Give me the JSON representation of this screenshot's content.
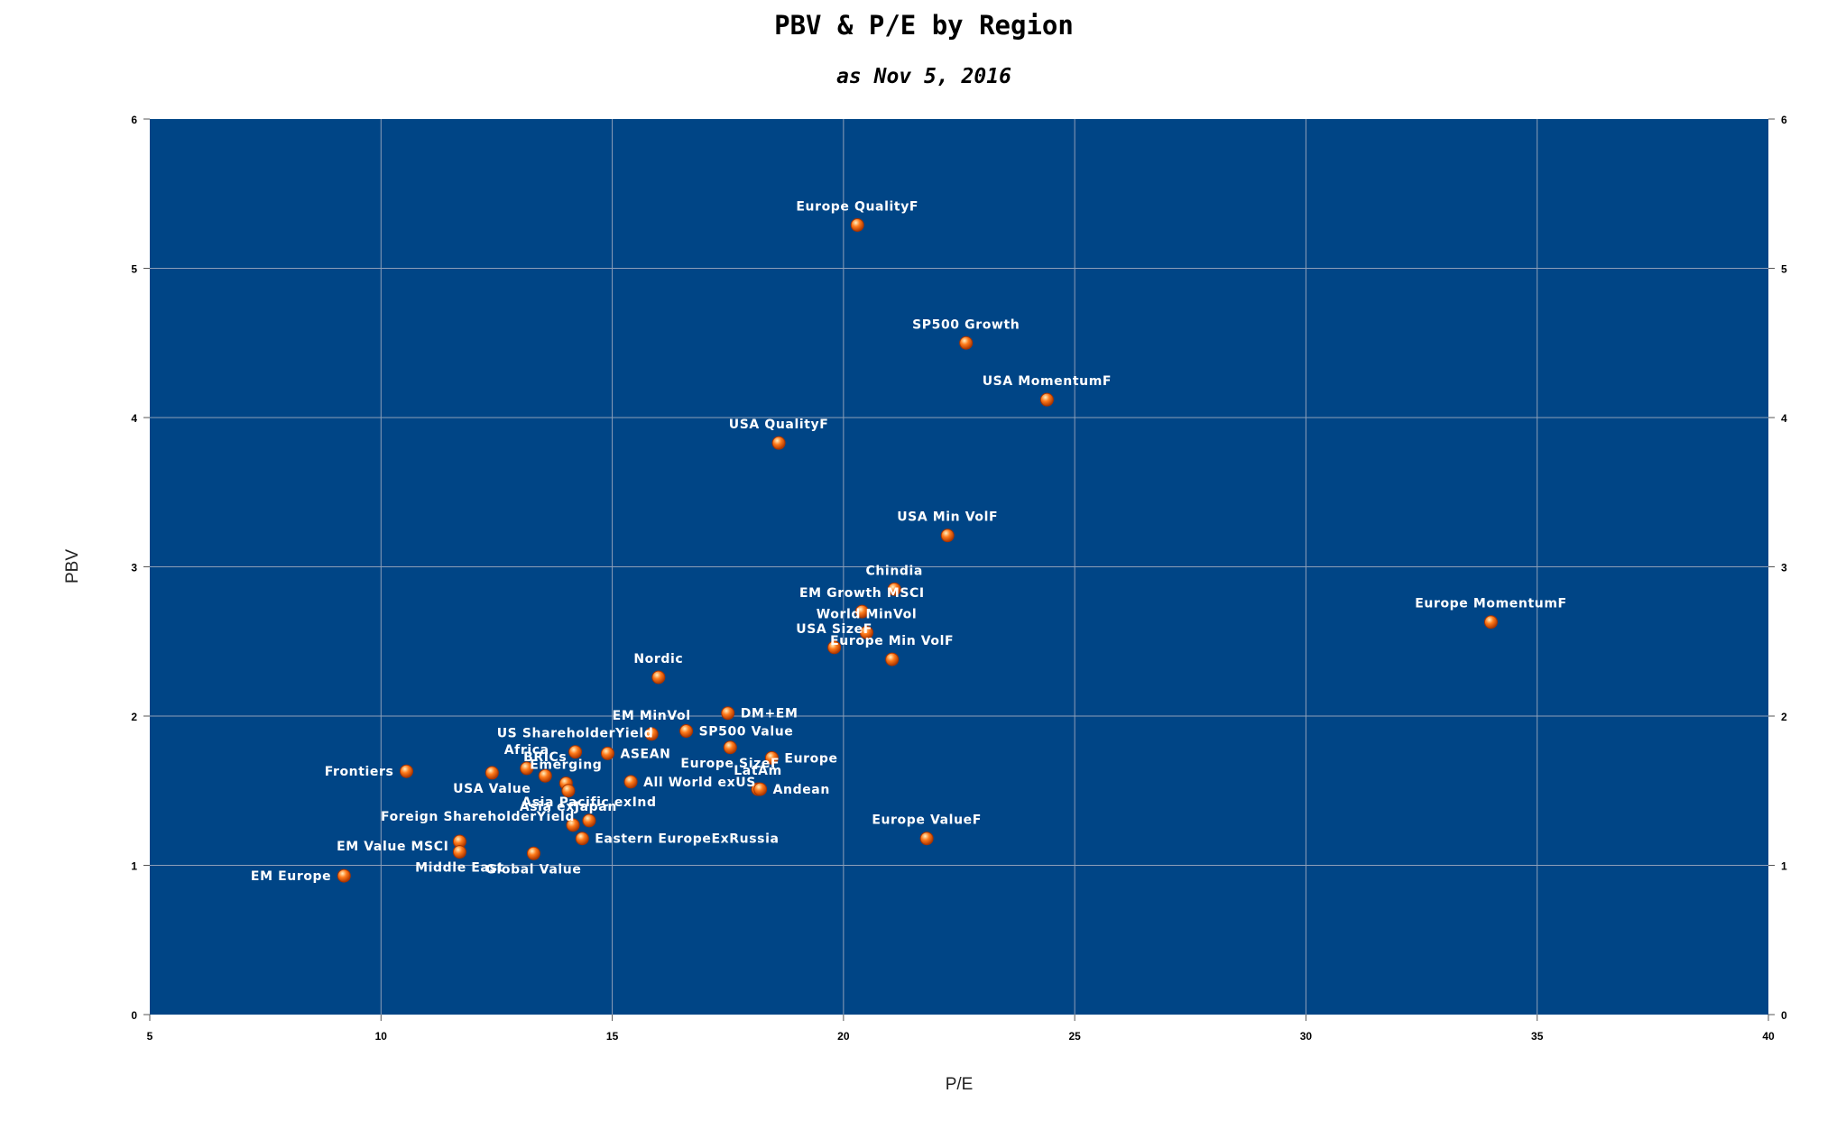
{
  "chart_data": {
    "type": "scatter",
    "title": "PBV & P/E by Region",
    "subtitle": "as Nov 5, 2016",
    "xlabel": "P/E",
    "ylabel": "PBV",
    "xlim": [
      5,
      40
    ],
    "ylim": [
      0,
      6
    ],
    "x_ticks": [
      "5",
      "10",
      "15",
      "20",
      "25",
      "30",
      "35",
      "40"
    ],
    "y_ticks": [
      "0",
      "1",
      "2",
      "3",
      "4",
      "5",
      "6"
    ],
    "y_ticks_right": [
      "0",
      "1",
      "2",
      "3",
      "4",
      "5",
      "6"
    ],
    "grid": true,
    "colors": {
      "plot_background": "#004586",
      "marker": "#ff7a1a",
      "marker_edge": "#a83400",
      "label": "#ffffff",
      "grid": "#8e9fb8"
    },
    "points": [
      {
        "label": "Europe QualityF",
        "x": 20.3,
        "y": 5.29,
        "anchor": "middle",
        "pos": "above"
      },
      {
        "label": "SP500 Growth",
        "x": 22.65,
        "y": 4.5,
        "anchor": "middle",
        "pos": "above"
      },
      {
        "label": "USA MomentumF",
        "x": 24.4,
        "y": 4.12,
        "anchor": "middle",
        "pos": "above"
      },
      {
        "label": "USA QualityF",
        "x": 18.6,
        "y": 3.83,
        "anchor": "middle",
        "pos": "above"
      },
      {
        "label": "USA Min VolF",
        "x": 22.25,
        "y": 3.21,
        "anchor": "middle",
        "pos": "above"
      },
      {
        "label": "Chindia",
        "x": 21.1,
        "y": 2.85,
        "anchor": "middle",
        "pos": "above"
      },
      {
        "label": "EM Growth MSCI",
        "x": 20.4,
        "y": 2.7,
        "anchor": "middle",
        "pos": "above"
      },
      {
        "label": "World MinVol",
        "x": 20.5,
        "y": 2.56,
        "anchor": "middle",
        "pos": "above"
      },
      {
        "label": "USA SizeF",
        "x": 19.8,
        "y": 2.46,
        "anchor": "middle",
        "pos": "above"
      },
      {
        "label": "Europe Min VolF",
        "x": 21.05,
        "y": 2.38,
        "anchor": "middle",
        "pos": "above"
      },
      {
        "label": "Europe MomentumF",
        "x": 34.0,
        "y": 2.63,
        "anchor": "middle",
        "pos": "above"
      },
      {
        "label": "Nordic",
        "x": 16.0,
        "y": 2.26,
        "anchor": "middle",
        "pos": "above"
      },
      {
        "label": "EM MinVol",
        "x": 15.85,
        "y": 1.88,
        "anchor": "middle",
        "pos": "above"
      },
      {
        "label": "DM+EM",
        "x": 17.5,
        "y": 2.02,
        "anchor": "start",
        "pos": "right"
      },
      {
        "label": "SP500 Value",
        "x": 16.6,
        "y": 1.9,
        "anchor": "start",
        "pos": "right"
      },
      {
        "label": "US ShareholderYield",
        "x": 14.2,
        "y": 1.76,
        "anchor": "middle",
        "pos": "above"
      },
      {
        "label": "Europe SizeF",
        "x": 17.55,
        "y": 1.79,
        "anchor": "middle",
        "pos": "below"
      },
      {
        "label": "ASEAN",
        "x": 14.9,
        "y": 1.75,
        "anchor": "start",
        "pos": "right"
      },
      {
        "label": "Africa",
        "x": 13.15,
        "y": 1.65,
        "anchor": "middle",
        "pos": "above"
      },
      {
        "label": "BRICs",
        "x": 13.55,
        "y": 1.6,
        "anchor": "middle",
        "pos": "above"
      },
      {
        "label": "Emerging",
        "x": 14.0,
        "y": 1.55,
        "anchor": "middle",
        "pos": "above"
      },
      {
        "label": "Europe",
        "x": 18.45,
        "y": 1.72,
        "anchor": "start",
        "pos": "right"
      },
      {
        "label": "LatAm",
        "x": 18.15,
        "y": 1.51,
        "anchor": "middle",
        "pos": "above"
      },
      {
        "label": "Andean",
        "x": 18.2,
        "y": 1.51,
        "anchor": "start",
        "pos": "right"
      },
      {
        "label": "All World exUS",
        "x": 15.4,
        "y": 1.56,
        "anchor": "start",
        "pos": "right"
      },
      {
        "label": "Frontiers",
        "x": 10.55,
        "y": 1.63,
        "anchor": "end",
        "pos": "left"
      },
      {
        "label": "USA Value",
        "x": 12.4,
        "y": 1.62,
        "anchor": "middle",
        "pos": "below"
      },
      {
        "label": "Asia exJapan",
        "x": 14.05,
        "y": 1.5,
        "anchor": "middle",
        "pos": "below"
      },
      {
        "label": "Asia Pacific exInd",
        "x": 14.5,
        "y": 1.3,
        "anchor": "middle",
        "pos": "above"
      },
      {
        "label": "Foreign ShareholderYield",
        "x": 14.15,
        "y": 1.27,
        "anchor": "end",
        "pos": "upper-left"
      },
      {
        "label": "Eastern EuropeExRussia",
        "x": 14.35,
        "y": 1.18,
        "anchor": "start",
        "pos": "right"
      },
      {
        "label": "EM Value MSCI",
        "x": 11.7,
        "y": 1.16,
        "anchor": "end",
        "pos": "lower-left"
      },
      {
        "label": "Middle East",
        "x": 11.7,
        "y": 1.09,
        "anchor": "middle",
        "pos": "below"
      },
      {
        "label": "Global Value",
        "x": 13.3,
        "y": 1.08,
        "anchor": "middle",
        "pos": "below"
      },
      {
        "label": "EM Europe",
        "x": 9.2,
        "y": 0.93,
        "anchor": "end",
        "pos": "left"
      },
      {
        "label": "Europe ValueF",
        "x": 21.8,
        "y": 1.18,
        "anchor": "middle",
        "pos": "above"
      }
    ]
  }
}
